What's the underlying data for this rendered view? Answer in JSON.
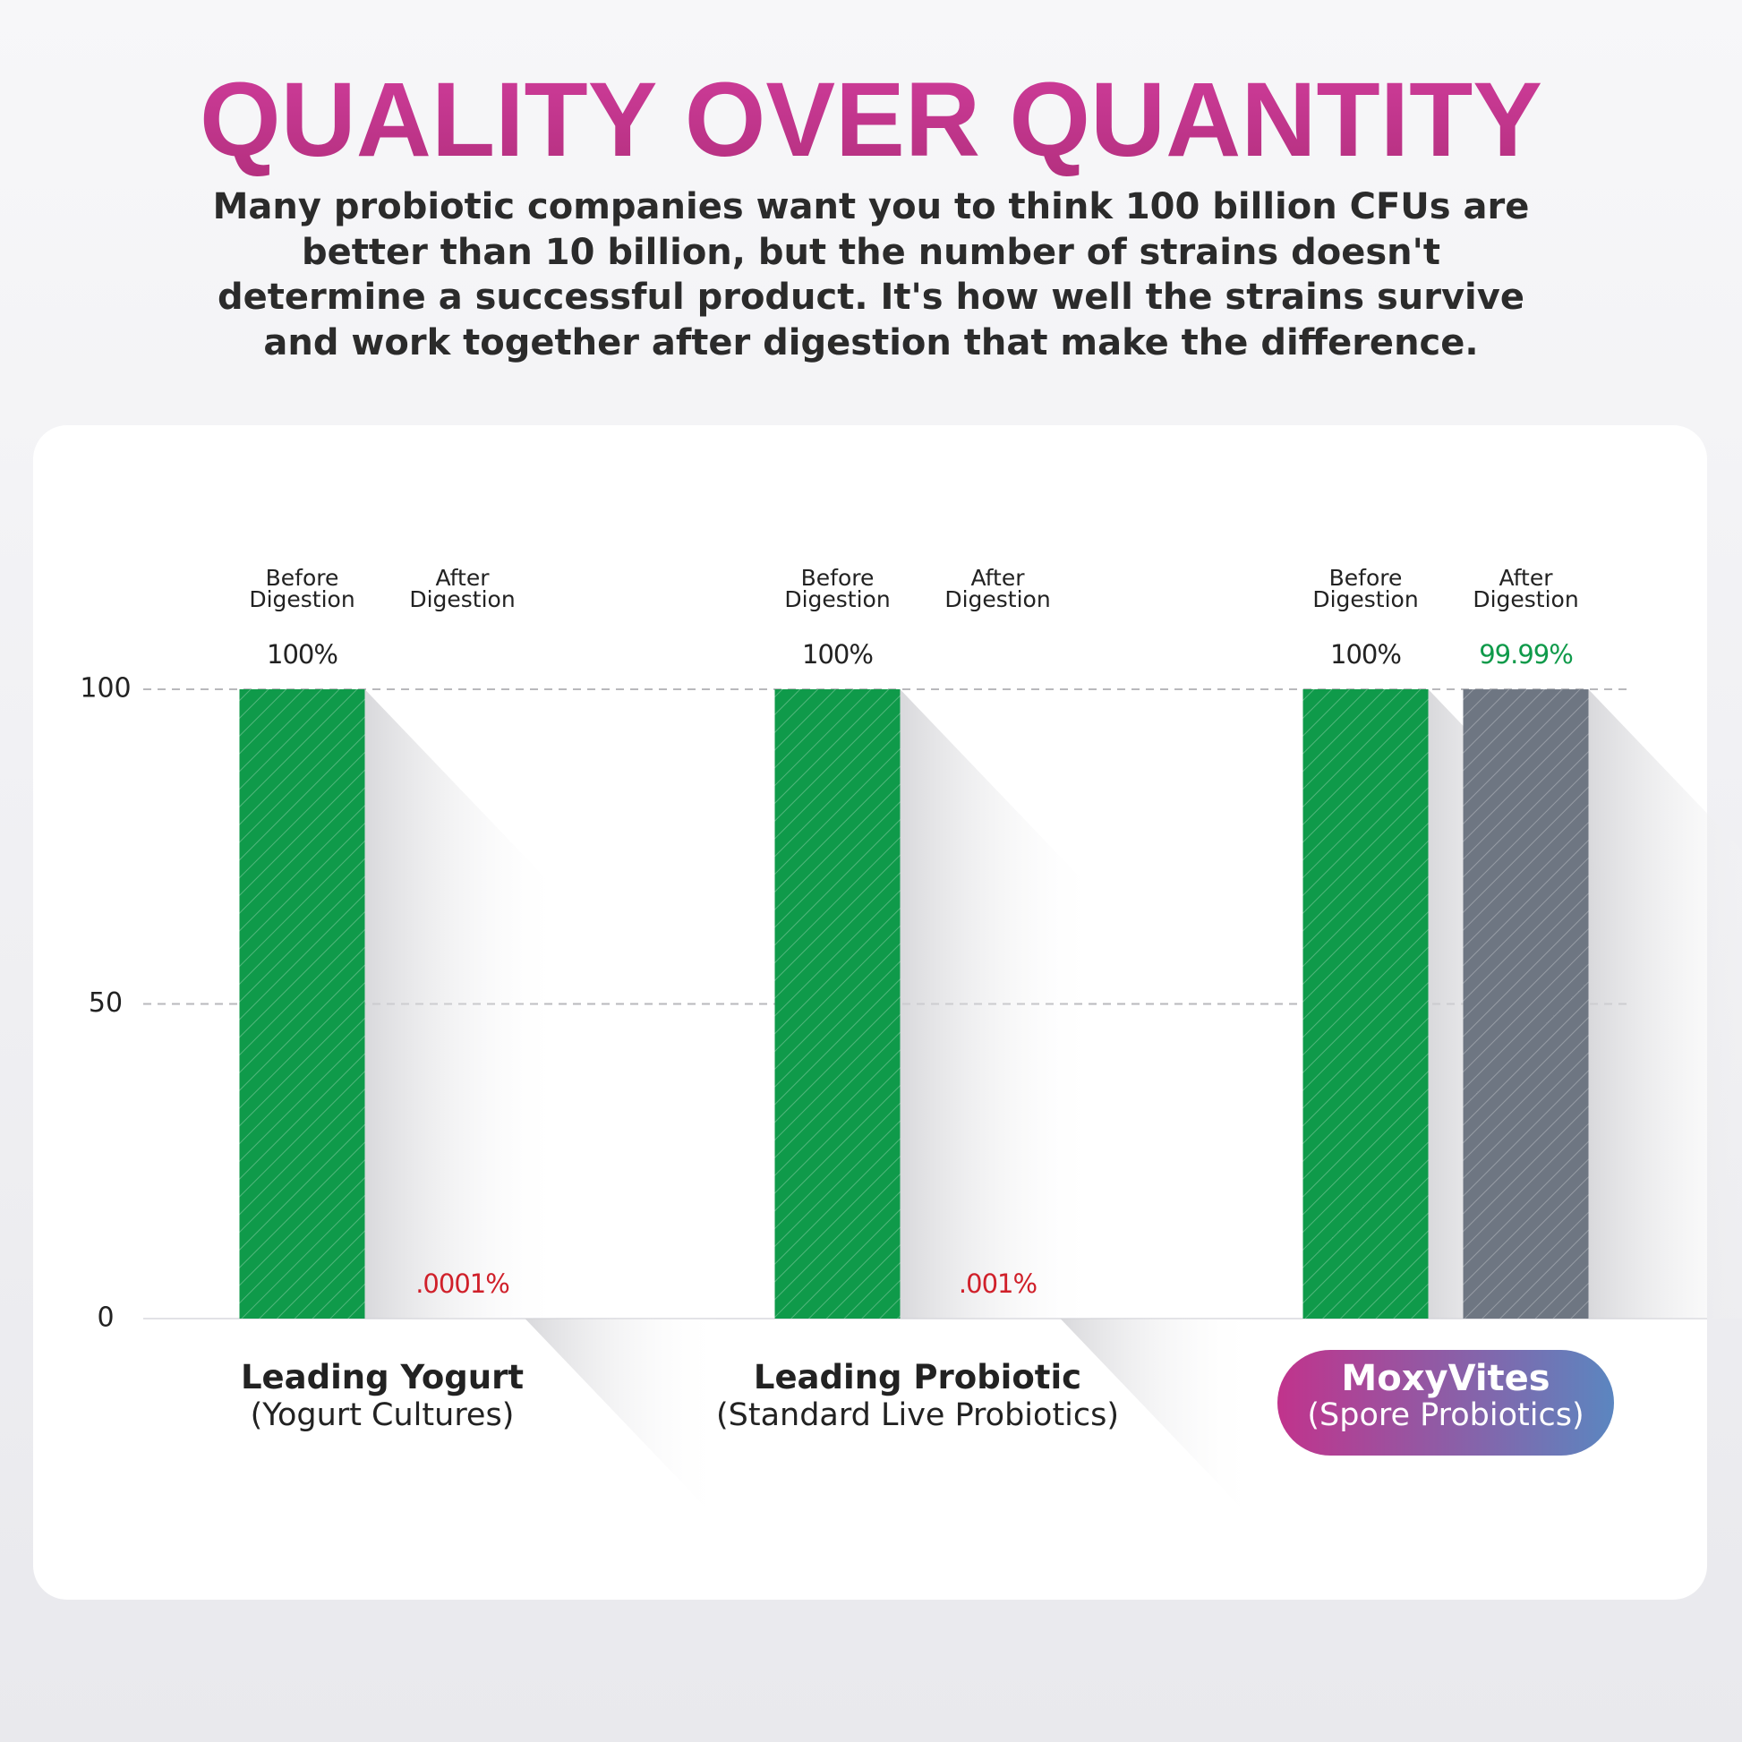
{
  "chart_data": {
    "type": "bar",
    "title": "QUALITY OVER QUANTITY",
    "subtitle": "Many probiotic companies want you to think 100 billion CFUs are better than 10 billion, but the number of strains doesn't determine a successful product. It's how well the strains survive and work together after digestion that make the difference.",
    "categories": [
      "Leading Yogurt",
      "Leading Probiotic",
      "MoxyVites"
    ],
    "category_subtitles": [
      "(Yogurt Cultures)",
      "(Standard Live Probiotics)",
      "(Spore Probiotics)"
    ],
    "highlight_index": 2,
    "series": [
      {
        "name": "Before Digestion",
        "color": "#0f9a4a",
        "values": [
          100,
          100,
          100
        ],
        "value_labels": [
          "100%",
          "100%",
          "100%"
        ],
        "value_label_colors": [
          "#222222",
          "#222222",
          "#222222"
        ]
      },
      {
        "name": "After Digestion",
        "color": "#6e7682",
        "values": [
          0.0001,
          0.001,
          99.99
        ],
        "value_labels": [
          ".0001%",
          ".001%",
          "99.99%"
        ],
        "value_label_colors": [
          "#d0202a",
          "#d0202a",
          "#0f9a4a"
        ]
      }
    ],
    "ylim": [
      0,
      100
    ],
    "yticks": [
      0,
      50,
      100
    ],
    "grid": true
  }
}
